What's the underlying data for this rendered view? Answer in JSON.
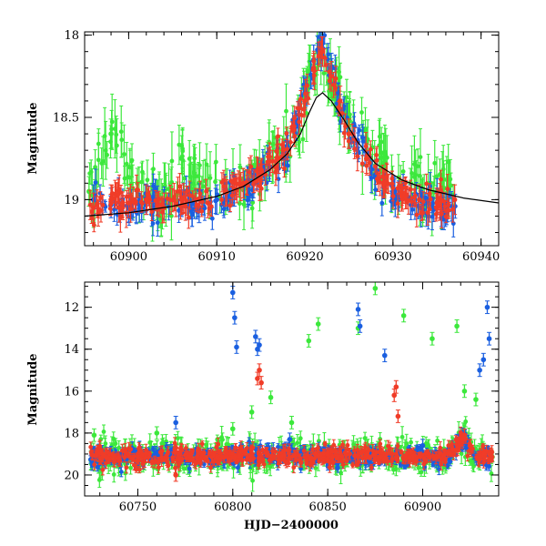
{
  "chart_data": [
    {
      "type": "scatter",
      "title": "",
      "xlabel": "",
      "ylabel": "Magnitude",
      "xlim": [
        60895,
        60942
      ],
      "ylim": [
        19.28,
        17.98
      ],
      "y_inverted": true,
      "xticks": [
        60900,
        60910,
        60920,
        60930,
        60940
      ],
      "xtick_labels": [
        "60900",
        "60910",
        "60920",
        "60930",
        "60940"
      ],
      "yticks": [
        18,
        18.5,
        19
      ],
      "ytick_labels": [
        "18",
        "18.5",
        "19"
      ],
      "grid": false,
      "colors": {
        "blue": "#1a5fe0",
        "red": "#f03c28",
        "green": "#3ce83c",
        "model": "#000000"
      },
      "series": [
        {
          "color": "blue",
          "x": [
            60896,
            60898,
            60900,
            60902,
            60904,
            60906,
            60908,
            60910,
            60912,
            60914,
            60916,
            60918,
            60919,
            60920,
            60921,
            60922,
            60923,
            60924,
            60926,
            60928,
            60930,
            60932,
            60934,
            60936
          ],
          "y": [
            19.0,
            19.02,
            19.05,
            19.0,
            19.03,
            19.0,
            19.05,
            19.0,
            18.95,
            18.9,
            18.8,
            18.7,
            18.55,
            18.35,
            18.15,
            18.05,
            18.2,
            18.45,
            18.65,
            18.85,
            18.95,
            19.0,
            19.02,
            19.05
          ]
        },
        {
          "color": "red",
          "x": [
            60896,
            60898,
            60900,
            60902,
            60904,
            60906,
            60909,
            60911,
            60913,
            60915,
            60917,
            60920,
            60921,
            60922,
            60923,
            60924,
            60925,
            60927,
            60929,
            60931,
            60933,
            60935,
            60937
          ],
          "y": [
            19.05,
            19.0,
            19.02,
            19.0,
            19.05,
            19.0,
            19.02,
            18.95,
            18.9,
            18.85,
            18.75,
            18.4,
            18.2,
            18.1,
            18.25,
            18.4,
            18.6,
            18.75,
            18.9,
            18.98,
            19.0,
            19.02,
            19.0
          ]
        },
        {
          "color": "green",
          "x": [
            60895.5,
            60898,
            60901,
            60903.5,
            60906,
            60908,
            60911,
            60914,
            60917,
            60919,
            60920.5,
            60921.5,
            60923,
            60925,
            60927,
            60929,
            60932,
            60935
          ],
          "y": [
            18.95,
            18.6,
            18.9,
            19.05,
            18.75,
            18.9,
            19.0,
            18.85,
            18.7,
            18.6,
            18.3,
            18.1,
            18.3,
            18.5,
            18.65,
            18.8,
            18.9,
            18.95
          ]
        }
      ],
      "model_curve": {
        "x": [
          60895,
          60900,
          60905,
          60910,
          60913,
          60916,
          60918,
          60919.5,
          60920.5,
          60921.3,
          60922,
          60923,
          60924.5,
          60926,
          60928,
          60931,
          60934,
          60938,
          60942
        ],
        "y": [
          19.1,
          19.08,
          19.04,
          18.98,
          18.92,
          18.82,
          18.72,
          18.6,
          18.47,
          18.38,
          18.35,
          18.4,
          18.52,
          18.65,
          18.78,
          18.88,
          18.94,
          18.99,
          19.02
        ]
      }
    },
    {
      "type": "scatter",
      "title": "",
      "xlabel": "HJD−2400000",
      "ylabel": "Magnitude",
      "xlim": [
        60722,
        60940
      ],
      "ylim": [
        21.0,
        10.8
      ],
      "y_inverted": true,
      "xticks": [
        60750,
        60800,
        60850,
        60900
      ],
      "xtick_labels": [
        "60750",
        "60800",
        "60850",
        "60900"
      ],
      "yticks": [
        12,
        14,
        16,
        18,
        20
      ],
      "ytick_labels": [
        "12",
        "14",
        "16",
        "18",
        "20"
      ],
      "grid": false,
      "baseline_mag": 19.1,
      "series": [
        {
          "color": "blue",
          "x": [
            60730,
            60750,
            60770,
            60800,
            60801,
            60802,
            60812,
            60813,
            60814,
            60830,
            60850,
            60866,
            60867,
            60880,
            60900,
            60930,
            60932,
            60934,
            60935
          ],
          "y": [
            19.2,
            19.1,
            17.5,
            11.3,
            12.5,
            13.9,
            13.4,
            14.0,
            13.8,
            18.3,
            19.1,
            12.1,
            12.9,
            14.3,
            18.6,
            15.0,
            14.5,
            12.0,
            13.5
          ]
        },
        {
          "color": "red",
          "x": [
            60740,
            60770,
            60813,
            60814,
            60815,
            60850,
            60885,
            60886,
            60887,
            60921,
            60922,
            60925
          ],
          "y": [
            19.2,
            20.0,
            15.4,
            15.0,
            15.6,
            19.0,
            16.2,
            15.8,
            17.2,
            18.3,
            18.1,
            18.6
          ]
        },
        {
          "color": "green",
          "x": [
            60727,
            60760,
            60783,
            60800,
            60810,
            60820,
            60831,
            60840,
            60845,
            60860,
            60866,
            60875,
            60890,
            60905,
            60918,
            60922,
            60928
          ],
          "y": [
            18.1,
            18.0,
            18.6,
            17.8,
            17.0,
            16.3,
            17.5,
            13.6,
            12.8,
            19.3,
            13.0,
            11.1,
            12.4,
            13.5,
            12.9,
            16.0,
            16.4
          ]
        }
      ]
    }
  ]
}
